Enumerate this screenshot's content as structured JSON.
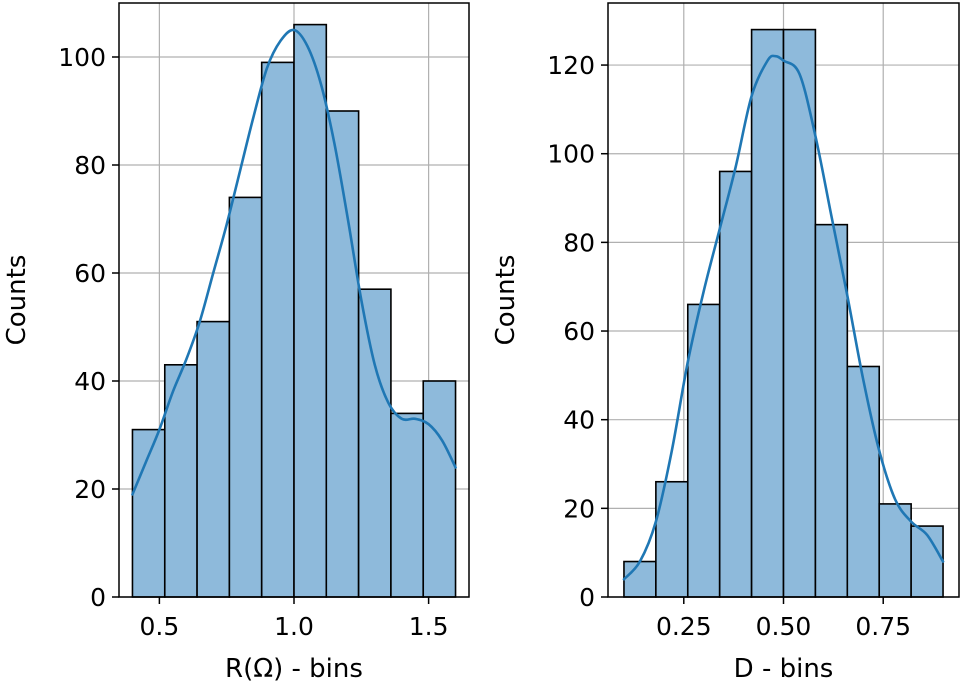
{
  "chart_data": [
    {
      "type": "bar",
      "subtype": "histogram-with-kde",
      "xlabel": "R(Ω) - bins",
      "ylabel": "Counts",
      "xlim": [
        0.35,
        1.65
      ],
      "ylim": [
        0,
        110
      ],
      "grid": true,
      "xticks": [
        0.5,
        1.0,
        1.5
      ],
      "xtick_labels": [
        "0.5",
        "1.0",
        "1.5"
      ],
      "yticks": [
        0,
        20,
        40,
        60,
        80,
        100
      ],
      "ytick_labels": [
        "0",
        "20",
        "40",
        "60",
        "80",
        "100"
      ],
      "bin_edges": [
        0.4,
        0.52,
        0.64,
        0.76,
        0.88,
        1.0,
        1.12,
        1.24,
        1.36,
        1.48,
        1.6
      ],
      "values": [
        31,
        43,
        51,
        74,
        99,
        106,
        90,
        57,
        34,
        40
      ],
      "kde": {
        "x": [
          0.4,
          0.45,
          0.5,
          0.55,
          0.6,
          0.65,
          0.7,
          0.75,
          0.8,
          0.85,
          0.9,
          0.95,
          1.0,
          1.05,
          1.1,
          1.15,
          1.2,
          1.25,
          1.3,
          1.35,
          1.4,
          1.45,
          1.5,
          1.55,
          1.6
        ],
        "y": [
          19,
          25,
          31,
          38,
          44,
          51,
          60,
          69,
          79,
          89,
          98,
          103,
          105,
          102,
          95,
          84,
          70,
          55,
          43,
          36,
          33,
          33,
          32,
          29,
          24
        ]
      },
      "bar_color": "#8ebadb",
      "line_color": "#1f77b4"
    },
    {
      "type": "bar",
      "subtype": "histogram-with-kde",
      "xlabel": "D - bins",
      "ylabel": "Counts",
      "xlim": [
        0.06,
        0.94
      ],
      "ylim": [
        0,
        134
      ],
      "grid": true,
      "xticks": [
        0.25,
        0.5,
        0.75
      ],
      "xtick_labels": [
        "0.25",
        "0.50",
        "0.75"
      ],
      "yticks": [
        0,
        20,
        40,
        60,
        80,
        100,
        120
      ],
      "ytick_labels": [
        "0",
        "20",
        "40",
        "60",
        "80",
        "100",
        "120"
      ],
      "bin_edges": [
        0.1,
        0.18,
        0.26,
        0.34,
        0.42,
        0.5,
        0.58,
        0.66,
        0.74,
        0.82,
        0.9
      ],
      "values": [
        8,
        26,
        66,
        96,
        128,
        128,
        84,
        52,
        21,
        16
      ],
      "kde": {
        "x": [
          0.1,
          0.14,
          0.18,
          0.22,
          0.26,
          0.3,
          0.34,
          0.38,
          0.42,
          0.46,
          0.48,
          0.5,
          0.54,
          0.58,
          0.62,
          0.66,
          0.7,
          0.74,
          0.78,
          0.82,
          0.86,
          0.9
        ],
        "y": [
          4,
          8,
          17,
          33,
          53,
          69,
          83,
          97,
          113,
          121,
          122,
          121,
          118,
          104,
          86,
          68,
          49,
          33,
          22,
          17,
          14,
          8
        ]
      },
      "bar_color": "#8ebadb",
      "line_color": "#1f77b4"
    }
  ]
}
